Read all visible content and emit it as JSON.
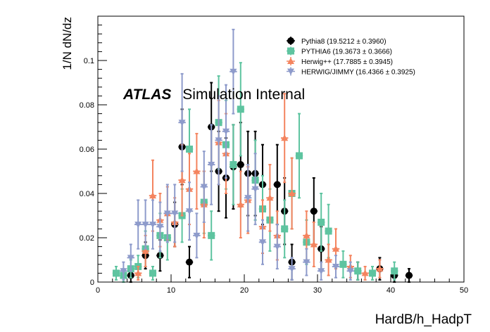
{
  "chart_data": {
    "type": "scatter",
    "xlabel": "HardB/h_HadpT",
    "ylabel": "1/N dN/dz",
    "xlim": [
      0,
      50
    ],
    "ylim": [
      0,
      0.12
    ],
    "x_ticks": [
      "0",
      "10",
      "20",
      "30",
      "40",
      "50"
    ],
    "y_ticks": [
      "0",
      "0.02",
      "0.04",
      "0.06",
      "0.08",
      "0.1"
    ],
    "annotation": {
      "bold": "ATLAS",
      "normal": "Simulation Internal"
    },
    "legend_position": "top-right",
    "grid": false,
    "series": [
      {
        "name": "Pythia8 (19.5212 ± 0.3960)",
        "color": "#000000",
        "marker": "circle",
        "points": [
          {
            "x": 4.5,
            "y": 0.003,
            "err": 0.003
          },
          {
            "x": 6.5,
            "y": 0.012,
            "err": 0.006
          },
          {
            "x": 8.5,
            "y": 0.012,
            "err": 0.007
          },
          {
            "x": 10.5,
            "y": 0.026,
            "err": 0.01
          },
          {
            "x": 11.5,
            "y": 0.061,
            "err": 0.017
          },
          {
            "x": 12.5,
            "y": 0.009,
            "err": 0.007
          },
          {
            "x": 15.5,
            "y": 0.07,
            "err": 0.02
          },
          {
            "x": 16.5,
            "y": 0.05,
            "err": 0.018
          },
          {
            "x": 17.5,
            "y": 0.047,
            "err": 0.018
          },
          {
            "x": 18.5,
            "y": 0.052,
            "err": 0.019
          },
          {
            "x": 19.5,
            "y": 0.053,
            "err": 0.019
          },
          {
            "x": 20.5,
            "y": 0.049,
            "err": 0.019
          },
          {
            "x": 21.5,
            "y": 0.049,
            "err": 0.019
          },
          {
            "x": 22.5,
            "y": 0.044,
            "err": 0.018
          },
          {
            "x": 24.5,
            "y": 0.044,
            "err": 0.018
          },
          {
            "x": 25.5,
            "y": 0.032,
            "err": 0.015
          },
          {
            "x": 26.5,
            "y": 0.009,
            "err": 0.008
          },
          {
            "x": 29.5,
            "y": 0.032,
            "err": 0.015
          },
          {
            "x": 30.5,
            "y": 0.015,
            "err": 0.01
          },
          {
            "x": 35.5,
            "y": 0.005,
            "err": 0.004
          },
          {
            "x": 38.5,
            "y": 0.006,
            "err": 0.005
          },
          {
            "x": 40.5,
            "y": 0.003,
            "err": 0.003
          },
          {
            "x": 42.5,
            "y": 0.003,
            "err": 0.003
          }
        ]
      },
      {
        "name": "PYTHIA6 (19.3673 ± 0.3666)",
        "color": "#5ec4a0",
        "marker": "square",
        "points": [
          {
            "x": 2.5,
            "y": 0.004,
            "err": 0.003
          },
          {
            "x": 3.5,
            "y": 0.003,
            "err": 0.003
          },
          {
            "x": 4.5,
            "y": 0.006,
            "err": 0.004
          },
          {
            "x": 5.5,
            "y": 0.007,
            "err": 0.005
          },
          {
            "x": 6.5,
            "y": 0.015,
            "err": 0.008
          },
          {
            "x": 7.5,
            "y": 0.004,
            "err": 0.003
          },
          {
            "x": 8.5,
            "y": 0.021,
            "err": 0.01
          },
          {
            "x": 9.5,
            "y": 0.02,
            "err": 0.01
          },
          {
            "x": 11.5,
            "y": 0.03,
            "err": 0.012
          },
          {
            "x": 12.5,
            "y": 0.06,
            "err": 0.018
          },
          {
            "x": 14.5,
            "y": 0.036,
            "err": 0.014
          },
          {
            "x": 15.5,
            "y": 0.021,
            "err": 0.011
          },
          {
            "x": 16.5,
            "y": 0.072,
            "err": 0.021
          },
          {
            "x": 17.5,
            "y": 0.062,
            "err": 0.02
          },
          {
            "x": 18.5,
            "y": 0.053,
            "err": 0.018
          },
          {
            "x": 19.5,
            "y": 0.078,
            "err": 0.021
          },
          {
            "x": 21.5,
            "y": 0.046,
            "err": 0.018
          },
          {
            "x": 22.5,
            "y": 0.033,
            "err": 0.015
          },
          {
            "x": 23.5,
            "y": 0.028,
            "err": 0.014
          },
          {
            "x": 25.5,
            "y": 0.024,
            "err": 0.013
          },
          {
            "x": 26.5,
            "y": 0.04,
            "err": 0.016
          },
          {
            "x": 27.5,
            "y": 0.057,
            "err": 0.019
          },
          {
            "x": 28.5,
            "y": 0.018,
            "err": 0.01
          },
          {
            "x": 30.5,
            "y": 0.027,
            "err": 0.013
          },
          {
            "x": 31.5,
            "y": 0.023,
            "err": 0.012
          },
          {
            "x": 33.5,
            "y": 0.008,
            "err": 0.006
          },
          {
            "x": 35.5,
            "y": 0.005,
            "err": 0.004
          },
          {
            "x": 37.5,
            "y": 0.004,
            "err": 0.003
          },
          {
            "x": 40.5,
            "y": 0.005,
            "err": 0.004
          }
        ]
      },
      {
        "name": "Herwig++ (17.7885 ± 0.3945)",
        "color": "#f4845f",
        "marker": "triangle-up",
        "points": [
          {
            "x": 5.5,
            "y": 0.004,
            "err": 0.003
          },
          {
            "x": 6.5,
            "y": 0.014,
            "err": 0.007
          },
          {
            "x": 7.5,
            "y": 0.039,
            "err": 0.016
          },
          {
            "x": 8.5,
            "y": 0.028,
            "err": 0.012
          },
          {
            "x": 9.5,
            "y": 0.031,
            "err": 0.012
          },
          {
            "x": 10.5,
            "y": 0.027,
            "err": 0.011
          },
          {
            "x": 11.5,
            "y": 0.046,
            "err": 0.016
          },
          {
            "x": 12.5,
            "y": 0.042,
            "err": 0.016
          },
          {
            "x": 13.5,
            "y": 0.05,
            "err": 0.017
          },
          {
            "x": 14.5,
            "y": 0.035,
            "err": 0.015
          },
          {
            "x": 16.5,
            "y": 0.063,
            "err": 0.019
          },
          {
            "x": 17.5,
            "y": 0.058,
            "err": 0.018
          },
          {
            "x": 19.5,
            "y": 0.035,
            "err": 0.015
          },
          {
            "x": 20.5,
            "y": 0.037,
            "err": 0.015
          },
          {
            "x": 22.5,
            "y": 0.025,
            "err": 0.012
          },
          {
            "x": 23.5,
            "y": 0.038,
            "err": 0.015
          },
          {
            "x": 24.5,
            "y": 0.021,
            "err": 0.011
          },
          {
            "x": 25.5,
            "y": 0.065,
            "err": 0.02
          },
          {
            "x": 26.5,
            "y": 0.04,
            "err": 0.016
          },
          {
            "x": 28.5,
            "y": 0.021,
            "err": 0.011
          },
          {
            "x": 29.5,
            "y": 0.017,
            "err": 0.01
          },
          {
            "x": 31.5,
            "y": 0.01,
            "err": 0.007
          },
          {
            "x": 32.5,
            "y": 0.015,
            "err": 0.009
          },
          {
            "x": 34.5,
            "y": 0.007,
            "err": 0.005
          },
          {
            "x": 36.5,
            "y": 0.004,
            "err": 0.003
          },
          {
            "x": 38.5,
            "y": 0.006,
            "err": 0.004
          }
        ]
      },
      {
        "name": "HERWIG/JIMMY (16.4366 ± 0.3925)",
        "color": "#8e9bcb",
        "marker": "triangle-down",
        "points": [
          {
            "x": 3.5,
            "y": 0.005,
            "err": 0.004
          },
          {
            "x": 4.5,
            "y": 0.011,
            "err": 0.006
          },
          {
            "x": 5.5,
            "y": 0.026,
            "err": 0.011
          },
          {
            "x": 6.5,
            "y": 0.026,
            "err": 0.011
          },
          {
            "x": 7.5,
            "y": 0.026,
            "err": 0.011
          },
          {
            "x": 8.5,
            "y": 0.025,
            "err": 0.011
          },
          {
            "x": 9.5,
            "y": 0.031,
            "err": 0.013
          },
          {
            "x": 10.5,
            "y": 0.031,
            "err": 0.013
          },
          {
            "x": 11.5,
            "y": 0.072,
            "err": 0.022
          },
          {
            "x": 12.5,
            "y": 0.032,
            "err": 0.013
          },
          {
            "x": 13.5,
            "y": 0.021,
            "err": 0.01
          },
          {
            "x": 14.5,
            "y": 0.043,
            "err": 0.016
          },
          {
            "x": 15.5,
            "y": 0.053,
            "err": 0.018
          },
          {
            "x": 16.5,
            "y": 0.064,
            "err": 0.02
          },
          {
            "x": 17.5,
            "y": 0.068,
            "err": 0.021
          },
          {
            "x": 18.5,
            "y": 0.095,
            "err": 0.019
          },
          {
            "x": 20.5,
            "y": 0.038,
            "err": 0.015
          },
          {
            "x": 21.5,
            "y": 0.042,
            "err": 0.016
          },
          {
            "x": 22.5,
            "y": 0.018,
            "err": 0.01
          },
          {
            "x": 24.5,
            "y": 0.016,
            "err": 0.01
          },
          {
            "x": 26.5,
            "y": 0.006,
            "err": 0.005
          },
          {
            "x": 28.5,
            "y": 0.009,
            "err": 0.006
          },
          {
            "x": 30.5,
            "y": 0.005,
            "err": 0.004
          },
          {
            "x": 32.5,
            "y": 0.007,
            "err": 0.005
          },
          {
            "x": 34.5,
            "y": 0.005,
            "err": 0.004
          }
        ]
      }
    ]
  }
}
